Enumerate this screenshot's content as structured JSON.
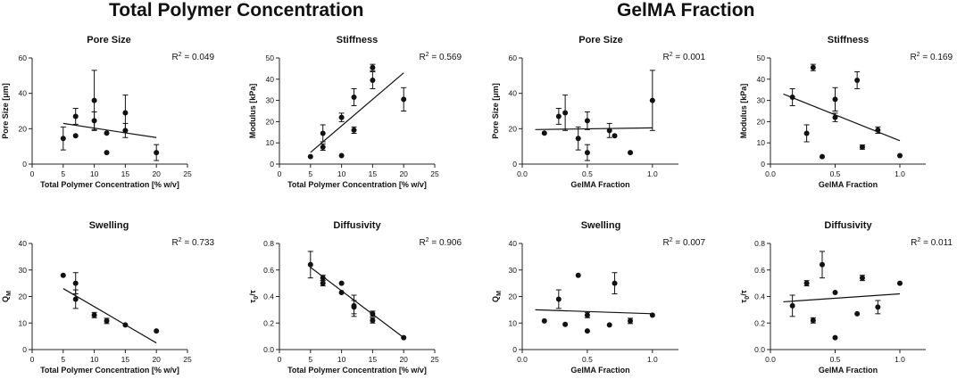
{
  "sections": [
    {
      "title": "Total Polymer Concentration"
    },
    {
      "title": "GelMA Fraction"
    }
  ],
  "chart_data": [
    {
      "type": "scatter",
      "title": "Pore Size",
      "r2_prefix": "R",
      "r2_sup": "2",
      "r2_value": " = 0.049",
      "xlabel": "Total Polymer Concentration [% w/v]",
      "ylabel": "Pore Size [μm]",
      "xlim": [
        0,
        25
      ],
      "ylim": [
        0,
        60
      ],
      "xticks": [
        "0",
        "5",
        "10",
        "15",
        "20",
        "25"
      ],
      "yticks": [
        "0",
        "20",
        "40",
        "60"
      ],
      "points": [
        {
          "x": 5,
          "y": 14.5,
          "err": 6.5
        },
        {
          "x": 7,
          "y": 16,
          "err": 0
        },
        {
          "x": 7,
          "y": 27,
          "err": 4.5
        },
        {
          "x": 10,
          "y": 24.5,
          "err": 5
        },
        {
          "x": 10,
          "y": 36,
          "err": 17
        },
        {
          "x": 12,
          "y": 17.5,
          "err": 0
        },
        {
          "x": 12,
          "y": 6.5,
          "err": 0
        },
        {
          "x": 15,
          "y": 19,
          "err": 4
        },
        {
          "x": 15,
          "y": 29,
          "err": 10
        },
        {
          "x": 20,
          "y": 6.5,
          "err": 4.5
        }
      ],
      "fit": {
        "x": [
          5,
          20
        ],
        "y": [
          23,
          15
        ]
      }
    },
    {
      "type": "scatter",
      "title": "Stiffness",
      "r2_prefix": "R",
      "r2_sup": "2",
      "r2_value": " = 0.569",
      "xlabel": "Total Polymer Concentration [% w/v]",
      "ylabel": "Modulus [kPa]",
      "xlim": [
        0,
        25
      ],
      "ylim": [
        0,
        50
      ],
      "xticks": [
        "0",
        "5",
        "10",
        "15",
        "20",
        "25"
      ],
      "yticks": [
        "0",
        "10",
        "20",
        "30",
        "40",
        "50"
      ],
      "points": [
        {
          "x": 5,
          "y": 3.5,
          "err": 0
        },
        {
          "x": 7,
          "y": 8,
          "err": 1.5
        },
        {
          "x": 7,
          "y": 14.5,
          "err": 4
        },
        {
          "x": 10,
          "y": 22,
          "err": 2
        },
        {
          "x": 10,
          "y": 4,
          "err": 0
        },
        {
          "x": 12,
          "y": 16,
          "err": 1.5
        },
        {
          "x": 12,
          "y": 31.5,
          "err": 4
        },
        {
          "x": 15,
          "y": 39.5,
          "err": 4
        },
        {
          "x": 15,
          "y": 45.5,
          "err": 1.5
        },
        {
          "x": 20,
          "y": 30.5,
          "err": 5.5
        }
      ],
      "fit": {
        "x": [
          5,
          20
        ],
        "y": [
          5.5,
          43
        ]
      }
    },
    {
      "type": "scatter",
      "title": "Pore Size",
      "r2_prefix": "R",
      "r2_sup": "2",
      "r2_value": " = 0.001",
      "xlabel": "GelMA Fraction",
      "ylabel": "Pore Size [μm]",
      "xlim": [
        0,
        1.2
      ],
      "ylim": [
        0,
        60
      ],
      "xticks": [
        "0.0",
        "0.5",
        "1.0"
      ],
      "xtick_values": [
        0,
        0.5,
        1.0
      ],
      "yticks": [
        "0",
        "20",
        "40",
        "60"
      ],
      "points": [
        {
          "x": 0.17,
          "y": 17.5,
          "err": 0
        },
        {
          "x": 0.28,
          "y": 27,
          "err": 4.5
        },
        {
          "x": 0.33,
          "y": 29,
          "err": 10
        },
        {
          "x": 0.43,
          "y": 14.5,
          "err": 6.5
        },
        {
          "x": 0.5,
          "y": 24.5,
          "err": 5
        },
        {
          "x": 0.5,
          "y": 6.5,
          "err": 4.5
        },
        {
          "x": 0.67,
          "y": 19,
          "err": 4
        },
        {
          "x": 0.71,
          "y": 16,
          "err": 0
        },
        {
          "x": 0.83,
          "y": 6.5,
          "err": 0
        },
        {
          "x": 1.0,
          "y": 36,
          "err": 17
        }
      ],
      "fit": {
        "x": [
          0.1,
          1.0
        ],
        "y": [
          19.5,
          20.5
        ]
      }
    },
    {
      "type": "scatter",
      "title": "Stiffness",
      "r2_prefix": "R",
      "r2_sup": "2",
      "r2_value": " = 0.169",
      "xlabel": "GelMA Fraction",
      "ylabel": "Modulus [kPa]",
      "xlim": [
        0,
        1.2
      ],
      "ylim": [
        0,
        50
      ],
      "xticks": [
        "0.0",
        "0.5",
        "1.0"
      ],
      "xtick_values": [
        0,
        0.5,
        1.0
      ],
      "yticks": [
        "0",
        "10",
        "20",
        "30",
        "40",
        "50"
      ],
      "points": [
        {
          "x": 0.17,
          "y": 31.5,
          "err": 4
        },
        {
          "x": 0.28,
          "y": 14.5,
          "err": 4
        },
        {
          "x": 0.33,
          "y": 45.5,
          "err": 1.5
        },
        {
          "x": 0.4,
          "y": 3.5,
          "err": 0
        },
        {
          "x": 0.5,
          "y": 22,
          "err": 2
        },
        {
          "x": 0.5,
          "y": 30.5,
          "err": 5.5
        },
        {
          "x": 0.67,
          "y": 39.5,
          "err": 4
        },
        {
          "x": 0.71,
          "y": 8,
          "err": 1
        },
        {
          "x": 0.83,
          "y": 16,
          "err": 1.5
        },
        {
          "x": 1.0,
          "y": 4,
          "err": 0
        }
      ],
      "fit": {
        "x": [
          0.1,
          1.0
        ],
        "y": [
          33,
          11
        ]
      }
    },
    {
      "type": "scatter",
      "title": "Swelling",
      "r2_prefix": "R",
      "r2_sup": "2",
      "r2_value": " = 0.733",
      "xlabel": "Total Polymer Concentration [% w/v]",
      "ylabel": "Q",
      "ylabel_sub": "M",
      "xlim": [
        0,
        25
      ],
      "ylim": [
        0,
        40
      ],
      "xticks": [
        "0",
        "5",
        "10",
        "15",
        "20",
        "25"
      ],
      "yticks": [
        "0",
        "10",
        "20",
        "30",
        "40"
      ],
      "points": [
        {
          "x": 5,
          "y": 28,
          "err": 0
        },
        {
          "x": 7,
          "y": 25,
          "err": 4
        },
        {
          "x": 7,
          "y": 19,
          "err": 3.5
        },
        {
          "x": 10,
          "y": 13,
          "err": 1
        },
        {
          "x": 12,
          "y": 10.8,
          "err": 1
        },
        {
          "x": 15,
          "y": 9.3,
          "err": 0
        },
        {
          "x": 20,
          "y": 7,
          "err": 0
        }
      ],
      "fit": {
        "x": [
          5,
          20
        ],
        "y": [
          23,
          2.5
        ]
      }
    },
    {
      "type": "scatter",
      "title": "Diffusivity",
      "r2_prefix": "R",
      "r2_sup": "2",
      "r2_value": " = 0.906",
      "xlabel": "Total Polymer Concentration [% w/v]",
      "ylabel": "τ",
      "ylabel_sub": "0",
      "ylabel_tail": "/τ",
      "xlim": [
        0,
        25
      ],
      "ylim": [
        0,
        0.8
      ],
      "xticks": [
        "0",
        "5",
        "10",
        "15",
        "20",
        "25"
      ],
      "yticks": [
        "0.0",
        "0.2",
        "0.4",
        "0.6",
        "0.8"
      ],
      "points": [
        {
          "x": 5,
          "y": 0.64,
          "err": 0.1
        },
        {
          "x": 7,
          "y": 0.5,
          "err": 0.02
        },
        {
          "x": 7,
          "y": 0.54,
          "err": 0.02
        },
        {
          "x": 10,
          "y": 0.5,
          "err": 0
        },
        {
          "x": 10,
          "y": 0.43,
          "err": 0
        },
        {
          "x": 12,
          "y": 0.33,
          "err": 0.08
        },
        {
          "x": 12,
          "y": 0.32,
          "err": 0.05
        },
        {
          "x": 15,
          "y": 0.27,
          "err": 0.02
        },
        {
          "x": 15,
          "y": 0.22,
          "err": 0.02
        },
        {
          "x": 20,
          "y": 0.09,
          "err": 0
        }
      ],
      "fit": {
        "x": [
          5,
          20
        ],
        "y": [
          0.62,
          0.09
        ]
      }
    },
    {
      "type": "scatter",
      "title": "Swelling",
      "r2_prefix": "R",
      "r2_sup": "2",
      "r2_value": " = 0.007",
      "xlabel": "GelMA Fraction",
      "ylabel": "Q",
      "ylabel_sub": "M",
      "xlim": [
        0,
        1.2
      ],
      "ylim": [
        0,
        40
      ],
      "xticks": [
        "0.0",
        "0.5",
        "1.0"
      ],
      "xtick_values": [
        0,
        0.5,
        1.0
      ],
      "yticks": [
        "0",
        "10",
        "20",
        "30",
        "40"
      ],
      "points": [
        {
          "x": 0.17,
          "y": 10.8,
          "err": 0
        },
        {
          "x": 0.28,
          "y": 19,
          "err": 3.5
        },
        {
          "x": 0.33,
          "y": 9.5,
          "err": 0
        },
        {
          "x": 0.43,
          "y": 28,
          "err": 0
        },
        {
          "x": 0.5,
          "y": 13,
          "err": 1
        },
        {
          "x": 0.5,
          "y": 7,
          "err": 0
        },
        {
          "x": 0.67,
          "y": 9.3,
          "err": 0
        },
        {
          "x": 0.71,
          "y": 25,
          "err": 4
        },
        {
          "x": 0.83,
          "y": 10.8,
          "err": 1
        },
        {
          "x": 1.0,
          "y": 13,
          "err": 0
        }
      ],
      "fit": {
        "x": [
          0.1,
          1.0
        ],
        "y": [
          15,
          13.5
        ]
      }
    },
    {
      "type": "scatter",
      "title": "Diffusivity",
      "r2_prefix": "R",
      "r2_sup": "2",
      "r2_value": " = 0.011",
      "xlabel": "GelMA Fraction",
      "ylabel": "τ",
      "ylabel_sub": "0",
      "ylabel_tail": "/τ",
      "xlim": [
        0,
        1.2
      ],
      "ylim": [
        0,
        0.8
      ],
      "xticks": [
        "0.0",
        "0.5",
        "1.0"
      ],
      "xtick_values": [
        0,
        0.5,
        1.0
      ],
      "yticks": [
        "0.0",
        "0.2",
        "0.4",
        "0.6",
        "0.8"
      ],
      "points": [
        {
          "x": 0.17,
          "y": 0.33,
          "err": 0.08
        },
        {
          "x": 0.28,
          "y": 0.5,
          "err": 0.02
        },
        {
          "x": 0.33,
          "y": 0.22,
          "err": 0.02
        },
        {
          "x": 0.4,
          "y": 0.64,
          "err": 0.1
        },
        {
          "x": 0.5,
          "y": 0.43,
          "err": 0
        },
        {
          "x": 0.5,
          "y": 0.09,
          "err": 0
        },
        {
          "x": 0.67,
          "y": 0.27,
          "err": 0
        },
        {
          "x": 0.71,
          "y": 0.54,
          "err": 0.02
        },
        {
          "x": 0.83,
          "y": 0.32,
          "err": 0.05
        },
        {
          "x": 1.0,
          "y": 0.5,
          "err": 0
        }
      ],
      "fit": {
        "x": [
          0.1,
          1.0
        ],
        "y": [
          0.36,
          0.42
        ]
      }
    }
  ]
}
